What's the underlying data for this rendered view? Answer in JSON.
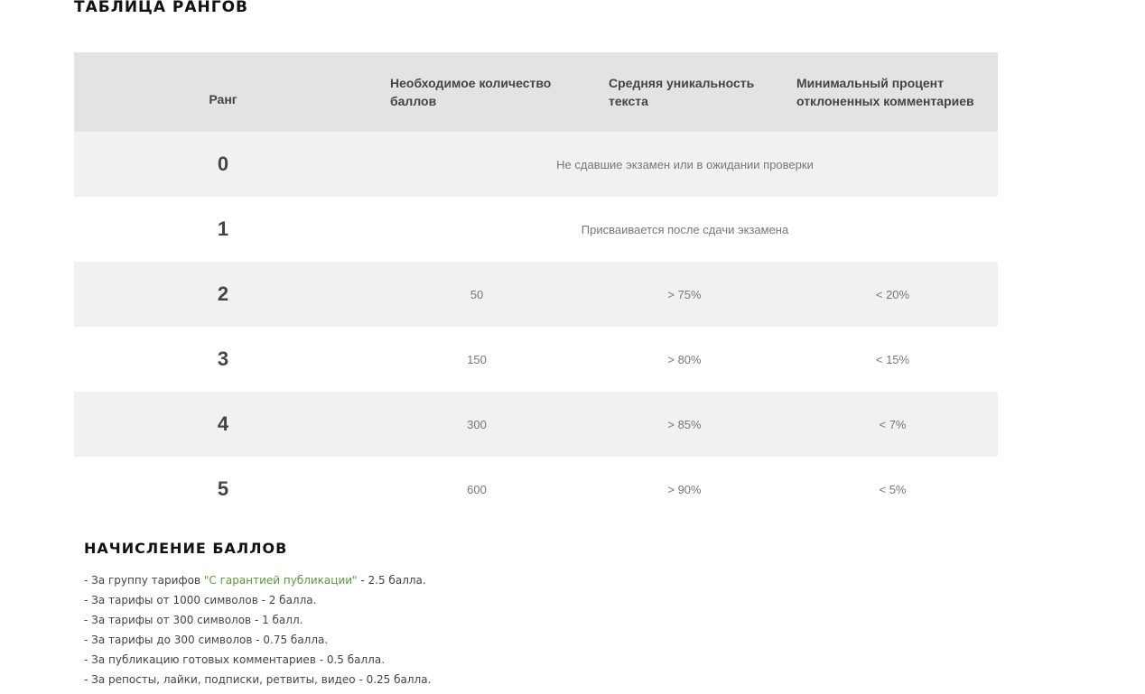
{
  "title": "ТАБЛИЦА РАНГОВ",
  "table": {
    "headers": [
      "Ранг",
      "Необходимое количество баллов",
      "Средняя уникальность текста",
      "Минимальный процент отклоненных комментариев"
    ],
    "merged_rows": [
      {
        "rank": "0",
        "text": "Не сдавшие экзамен или в ожидании проверки"
      },
      {
        "rank": "1",
        "text": "Присваивается после сдачи экзамена"
      }
    ],
    "rows": [
      {
        "rank": "2",
        "points": "50",
        "uniqueness": "> 75%",
        "rejected": "< 20%"
      },
      {
        "rank": "3",
        "points": "150",
        "uniqueness": "> 80%",
        "rejected": "< 15%"
      },
      {
        "rank": "4",
        "points": "300",
        "uniqueness": "> 85%",
        "rejected": "< 7%"
      },
      {
        "rank": "5",
        "points": "600",
        "uniqueness": "> 90%",
        "rejected": "< 5%"
      }
    ]
  },
  "points_section": {
    "title": "НАЧИСЛЕНИЕ БАЛЛОВ",
    "first": {
      "prefix": "- За группу тарифов ",
      "link": "\"С гарантией публикации\"",
      "suffix": " - 2.5 балла."
    },
    "items": [
      "- За тарифы от 1000 символов - 2 балла.",
      "- За тарифы от 300 символов - 1 балл.",
      "- За тарифы до 300 символов - 0.75 балла.",
      "- За публикацию готовых комментариев - 0.5 балла.",
      "- За репосты, лайки, подписки, ретвиты, видео - 0.25 балла."
    ],
    "link_color": "#5a9a3a"
  }
}
